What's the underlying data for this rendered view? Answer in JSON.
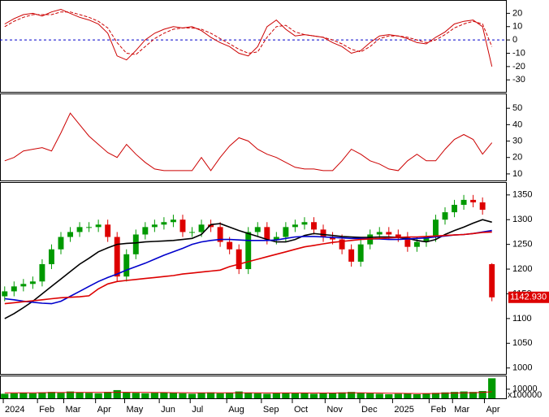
{
  "chart_data": [
    {
      "type": "line",
      "ylim": [
        -39,
        30
      ],
      "yticks": [
        20,
        10,
        0,
        -10,
        -20,
        -30
      ],
      "reference_line": 0,
      "reference_color": "#0000cc",
      "series": [
        {
          "color": "#cc0000",
          "dash": false,
          "values": [
            12,
            16,
            19,
            20,
            18,
            21,
            23,
            20,
            17,
            15,
            12,
            5,
            -12,
            -15,
            -8,
            0,
            5,
            8,
            10,
            9,
            10,
            7,
            2,
            -2,
            -5,
            -10,
            -12,
            -5,
            10,
            15,
            8,
            3,
            4,
            3,
            2,
            -2,
            -5,
            -10,
            -8,
            -2,
            3,
            4,
            3,
            1,
            -2,
            -3,
            2,
            6,
            12,
            14,
            15,
            10,
            -20
          ]
        },
        {
          "color": "#cc0000",
          "dash": true,
          "values": [
            10,
            14,
            17,
            19,
            19,
            19,
            21,
            21,
            19,
            17,
            14,
            9,
            -2,
            -10,
            -11,
            -5,
            1,
            5,
            8,
            9,
            9,
            8,
            5,
            1,
            -3,
            -7,
            -10,
            -9,
            2,
            10,
            11,
            6,
            4,
            3,
            2,
            0,
            -3,
            -7,
            -9,
            -5,
            1,
            3,
            3,
            2,
            0,
            -2,
            0,
            4,
            9,
            12,
            14,
            12,
            -5
          ]
        }
      ]
    },
    {
      "type": "line",
      "ylim": [
        6,
        59
      ],
      "yticks": [
        50,
        40,
        30,
        20,
        10
      ],
      "series": [
        {
          "color": "#cc0000",
          "dash": false,
          "values": [
            18,
            20,
            24,
            25,
            26,
            24,
            35,
            47,
            40,
            33,
            28,
            23,
            20,
            28,
            22,
            17,
            13,
            12,
            12,
            12,
            12,
            20,
            12,
            20,
            27,
            32,
            30,
            25,
            22,
            20,
            17,
            14,
            13,
            13,
            12,
            12,
            18,
            25,
            22,
            18,
            16,
            13,
            12,
            18,
            22,
            18,
            18,
            25,
            31,
            34,
            31,
            22,
            29
          ]
        }
      ]
    },
    {
      "type": "candlestick",
      "ylim": [
        988,
        1376
      ],
      "yticks": [
        1350,
        1300,
        1250,
        1200,
        1150,
        1100,
        1050,
        1000
      ],
      "up_color": "#009900",
      "down_color": "#dd0000",
      "last_price_label": "1142.930",
      "open": [
        1145,
        1155,
        1165,
        1170,
        1175,
        1210,
        1240,
        1265,
        1275,
        1285,
        1285,
        1290,
        1265,
        1185,
        1230,
        1270,
        1285,
        1290,
        1295,
        1300,
        1275,
        1275,
        1290,
        1285,
        1255,
        1240,
        1200,
        1275,
        1285,
        1260,
        1265,
        1285,
        1290,
        1295,
        1280,
        1265,
        1260,
        1240,
        1215,
        1250,
        1270,
        1275,
        1270,
        1265,
        1245,
        1255,
        1265,
        1300,
        1315,
        1330,
        1340,
        1335,
        1210
      ],
      "high": [
        1165,
        1175,
        1180,
        1185,
        1220,
        1250,
        1275,
        1285,
        1295,
        1295,
        1300,
        1300,
        1275,
        1240,
        1280,
        1295,
        1300,
        1305,
        1310,
        1310,
        1285,
        1300,
        1300,
        1295,
        1265,
        1250,
        1285,
        1295,
        1295,
        1275,
        1295,
        1300,
        1305,
        1305,
        1290,
        1275,
        1270,
        1250,
        1260,
        1280,
        1285,
        1285,
        1280,
        1275,
        1265,
        1275,
        1310,
        1325,
        1340,
        1350,
        1350,
        1345,
        1212
      ],
      "low": [
        1135,
        1145,
        1155,
        1160,
        1165,
        1200,
        1230,
        1255,
        1265,
        1275,
        1275,
        1255,
        1175,
        1175,
        1220,
        1260,
        1275,
        1280,
        1285,
        1265,
        1265,
        1265,
        1275,
        1245,
        1230,
        1190,
        1190,
        1265,
        1250,
        1250,
        1255,
        1275,
        1280,
        1270,
        1255,
        1250,
        1230,
        1205,
        1205,
        1240,
        1260,
        1260,
        1255,
        1235,
        1235,
        1245,
        1255,
        1290,
        1305,
        1320,
        1325,
        1310,
        1135
      ],
      "close": [
        1155,
        1165,
        1170,
        1175,
        1210,
        1240,
        1265,
        1275,
        1285,
        1285,
        1290,
        1265,
        1185,
        1230,
        1270,
        1285,
        1290,
        1295,
        1300,
        1275,
        1275,
        1290,
        1285,
        1255,
        1240,
        1200,
        1275,
        1285,
        1260,
        1265,
        1285,
        1290,
        1295,
        1280,
        1265,
        1260,
        1240,
        1215,
        1250,
        1270,
        1275,
        1270,
        1265,
        1245,
        1255,
        1265,
        1300,
        1315,
        1330,
        1340,
        1335,
        1320,
        1142.93
      ],
      "series": [
        {
          "color": "#000000",
          "values": [
            1100,
            1110,
            1122,
            1135,
            1150,
            1165,
            1180,
            1195,
            1210,
            1222,
            1235,
            1243,
            1250,
            1252,
            1253,
            1255,
            1256,
            1257,
            1258,
            1260,
            1262,
            1270,
            1290,
            1292,
            1285,
            1278,
            1272,
            1266,
            1260,
            1255,
            1255,
            1260,
            1268,
            1272,
            1270,
            1268,
            1266,
            1265,
            1264,
            1264,
            1265,
            1265,
            1264,
            1262,
            1258,
            1255,
            1260,
            1270,
            1278,
            1285,
            1293,
            1300,
            1295
          ]
        },
        {
          "color": "#0000cc",
          "values": [
            1140,
            1138,
            1135,
            1133,
            1131,
            1130,
            1135,
            1145,
            1155,
            1165,
            1175,
            1183,
            1190,
            1198,
            1205,
            1212,
            1220,
            1228,
            1235,
            1242,
            1250,
            1255,
            1258,
            1260,
            1260,
            1259,
            1258,
            1258,
            1258,
            1259,
            1262,
            1265,
            1266,
            1266,
            1265,
            1264,
            1263,
            1262,
            1262,
            1261,
            1261,
            1260,
            1260,
            1261,
            1262,
            1263,
            1265,
            1267,
            1269,
            1270,
            1272,
            1275,
            1278
          ]
        },
        {
          "color": "#dd0000",
          "values": [
            1130,
            1132,
            1134,
            1136,
            1138,
            1140,
            1142,
            1143,
            1144,
            1146,
            1160,
            1170,
            1175,
            1177,
            1179,
            1181,
            1183,
            1185,
            1187,
            1190,
            1192,
            1194,
            1196,
            1198,
            1205,
            1210,
            1215,
            1220,
            1225,
            1230,
            1235,
            1240,
            1245,
            1248,
            1251,
            1254,
            1256,
            1258,
            1260,
            1261,
            1262,
            1263,
            1264,
            1265,
            1265,
            1266,
            1267,
            1268,
            1269,
            1270,
            1272,
            1274,
            1275
          ]
        }
      ]
    },
    {
      "type": "bar",
      "ylim": [
        0,
        25000
      ],
      "yticks": [
        10000
      ],
      "y_unit_label": "x100000",
      "color": "#009900",
      "values": [
        5000,
        5500,
        6000,
        5500,
        6500,
        7000,
        6000,
        7500,
        6500,
        6000,
        5500,
        7000,
        9000,
        6500,
        6000,
        5500,
        6000,
        6500,
        6000,
        5500,
        5000,
        6000,
        6500,
        5500,
        6000,
        7500,
        6000,
        5500,
        5000,
        5500,
        6000,
        5500,
        6000,
        5000,
        5500,
        6000,
        6500,
        7000,
        6000,
        5500,
        5000,
        4500,
        5000,
        5500,
        4500,
        5000,
        6000,
        6500,
        7000,
        7500,
        7000,
        8000,
        22000
      ],
      "series": [
        {
          "color": "#dd0000",
          "values": [
            6000,
            6000,
            6100,
            6100,
            6200,
            6300,
            6300,
            6400,
            6400,
            6400,
            6400,
            6500,
            6600,
            6600,
            6500,
            6400,
            6300,
            6300,
            6200,
            6200,
            6100,
            6100,
            6100,
            6000,
            6000,
            6100,
            6100,
            6000,
            5900,
            5900,
            5900,
            5900,
            5900,
            5800,
            5800,
            5800,
            5900,
            6000,
            6000,
            5900,
            5800,
            5600,
            5500,
            5400,
            5300,
            5300,
            5400,
            5600,
            5800,
            6000,
            6200,
            6400,
            7200
          ]
        }
      ],
      "xlim": [
        0,
        54
      ],
      "xticks": [
        {
          "value": 0.35,
          "label": "2024"
        },
        {
          "value": 4,
          "label": "Feb"
        },
        {
          "value": 6.8,
          "label": "Mar"
        },
        {
          "value": 10.2,
          "label": "Apr"
        },
        {
          "value": 13.3,
          "label": "May"
        },
        {
          "value": 17,
          "label": "Jun"
        },
        {
          "value": 20.3,
          "label": "Jul"
        },
        {
          "value": 24.2,
          "label": "Aug"
        },
        {
          "value": 27.9,
          "label": "Sep"
        },
        {
          "value": 31.2,
          "label": "Oct"
        },
        {
          "value": 34.7,
          "label": "Nov"
        },
        {
          "value": 38.4,
          "label": "Dec"
        },
        {
          "value": 41.9,
          "label": "2025"
        },
        {
          "value": 45.8,
          "label": "Feb"
        },
        {
          "value": 48.3,
          "label": "Mar"
        },
        {
          "value": 51.7,
          "label": "Apr"
        }
      ]
    }
  ]
}
